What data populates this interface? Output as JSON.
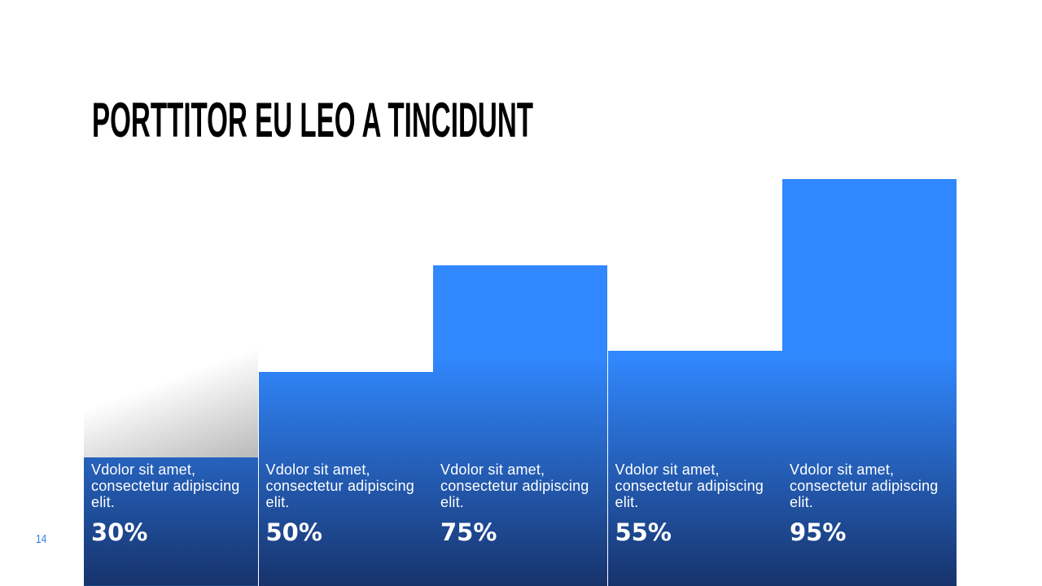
{
  "chart_data": {
    "type": "bar",
    "title": "PORTTITOR EU LEO A TINCIDUNT",
    "categories": [
      "Vdolor sit amet, consectetur adipiscing elit.",
      "Vdolor sit amet, consectetur adipiscing elit.",
      "Vdolor sit amet, consectetur adipiscing elit.",
      "Vdolor sit amet, consectetur adipiscing elit.",
      "Vdolor sit amet, consectetur adipiscing elit."
    ],
    "values": [
      30,
      50,
      75,
      55,
      95
    ],
    "value_labels": [
      "30%",
      "50%",
      "75%",
      "55%",
      "95%"
    ],
    "color": "#3187fd"
  },
  "page_number": "14"
}
